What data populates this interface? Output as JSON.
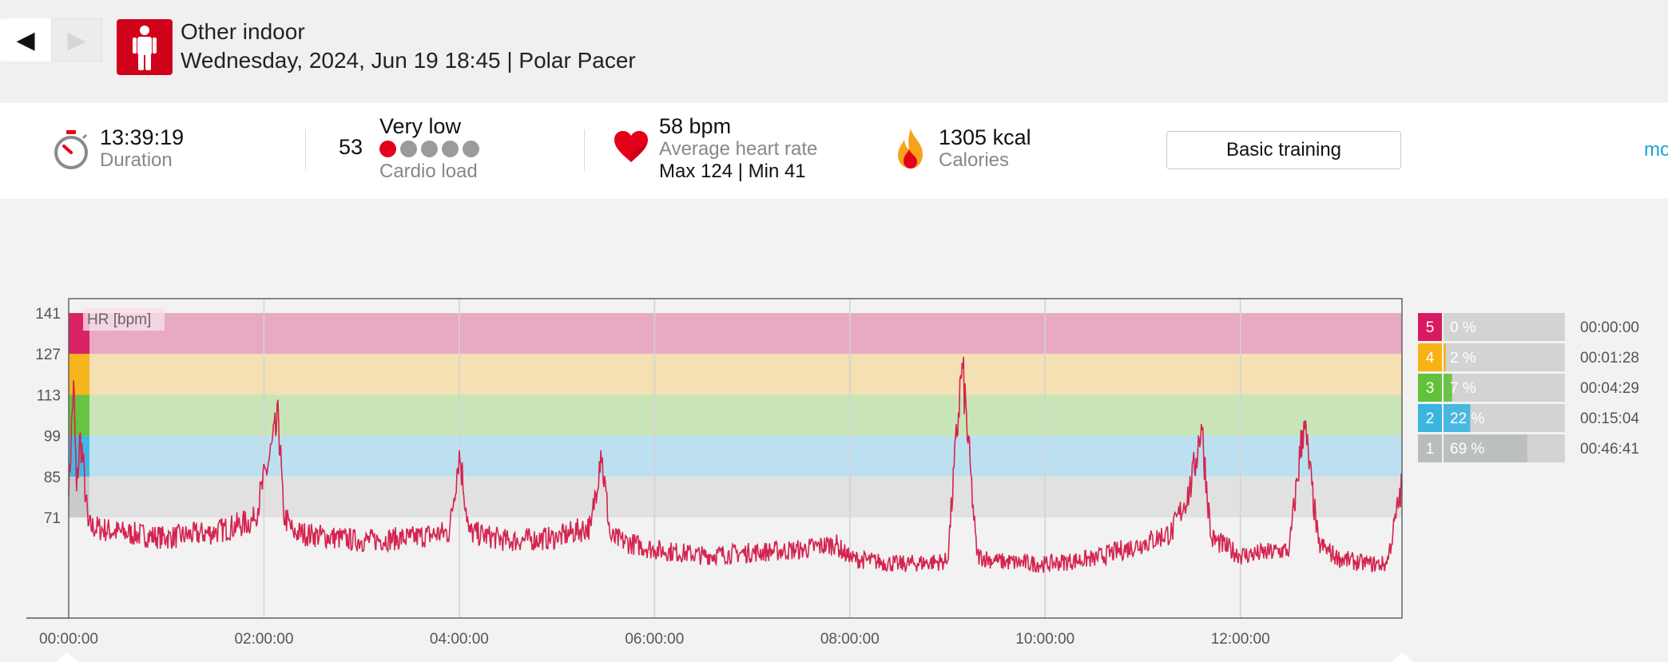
{
  "header": {
    "prev_glyph": "◀",
    "next_glyph": "▶",
    "sport_icon": "person-standing-icon",
    "sport_color": "#d0021b",
    "activity_name": "Other indoor",
    "activity_details": "Wednesday, 2024, Jun 19 18:45 | Polar Pacer"
  },
  "summary": {
    "duration_value": "13:39:19",
    "duration_label": "Duration",
    "cardio_value": "53",
    "cardio_level": "Very low",
    "cardio_label": "Cardio load",
    "cardio_dots_filled": 1,
    "cardio_dots_total": 5,
    "hr_value": "58 bpm",
    "hr_label": "Average heart rate",
    "hr_max_min": "Max 124  |  Min 41",
    "calories_value": "1305 kcal",
    "calories_label": "Calories",
    "training_button": "Basic training",
    "more_link": "mo"
  },
  "chart_data": {
    "type": "line",
    "title": "HR [bpm]",
    "y_ticks": [
      "141",
      "127",
      "113",
      "99",
      "85",
      "71"
    ],
    "ylim": [
      50,
      145
    ],
    "x_ticks": [
      "00:00:00",
      "02:00:00",
      "04:00:00",
      "06:00:00",
      "08:00:00",
      "10:00:00",
      "12:00:00"
    ],
    "xlim_hours": [
      0,
      13.655
    ],
    "grid": true,
    "zone_bands": [
      {
        "zone": 5,
        "from": 127,
        "to": 141,
        "color": "#e8a9c3"
      },
      {
        "zone": 4,
        "from": 113,
        "to": 127,
        "color": "#f4e0b3"
      },
      {
        "zone": 3,
        "from": 99,
        "to": 113,
        "color": "#c9e5b8"
      },
      {
        "zone": 2,
        "from": 85,
        "to": 99,
        "color": "#bde0f0"
      },
      {
        "zone": 1,
        "from": 71,
        "to": 85,
        "color": "#e1e1e1"
      }
    ],
    "line_color": "#d4244f",
    "series": [
      {
        "x_hours": [
          0,
          0.05,
          0.08,
          0.12,
          0.2,
          0.5,
          1.0,
          1.5,
          1.9,
          2.15,
          2.2,
          2.3,
          2.5,
          3.0,
          3.5,
          3.9,
          4.0,
          4.1,
          4.5,
          5.0,
          5.35,
          5.45,
          5.55,
          6.0,
          6.5,
          7.0,
          7.5,
          7.85,
          8.0,
          8.5,
          9.0,
          9.15,
          9.3,
          9.5,
          10.0,
          10.5,
          11.0,
          11.3,
          11.5,
          11.6,
          11.7,
          12.0,
          12.3,
          12.5,
          12.65,
          12.8,
          13.0,
          13.3,
          13.5,
          13.655
        ],
        "y_bpm": [
          78,
          118,
          80,
          100,
          68,
          66,
          64,
          66,
          70,
          104,
          72,
          66,
          65,
          63,
          64,
          66,
          94,
          66,
          63,
          64,
          68,
          94,
          64,
          60,
          58,
          59,
          60,
          62,
          57,
          55,
          56,
          124,
          58,
          56,
          55,
          57,
          62,
          66,
          82,
          103,
          64,
          58,
          59,
          60,
          104,
          62,
          57,
          55,
          55,
          82
        ]
      }
    ],
    "zones": [
      {
        "zone": "5",
        "percent": 0,
        "percent_label": "0 %",
        "time": "00:00:00",
        "color": "#d81b60"
      },
      {
        "zone": "4",
        "percent": 2,
        "percent_label": "2 %",
        "time": "00:01:28",
        "color": "#f7b215"
      },
      {
        "zone": "3",
        "percent": 7,
        "percent_label": "7 %",
        "time": "00:04:29",
        "color": "#62c13a"
      },
      {
        "zone": "2",
        "percent": 22,
        "percent_label": "22 %",
        "time": "00:15:04",
        "color": "#3ab5e0"
      },
      {
        "zone": "1",
        "percent": 69,
        "percent_label": "69 %",
        "time": "00:46:41",
        "color": "#b9bcbc"
      }
    ]
  }
}
